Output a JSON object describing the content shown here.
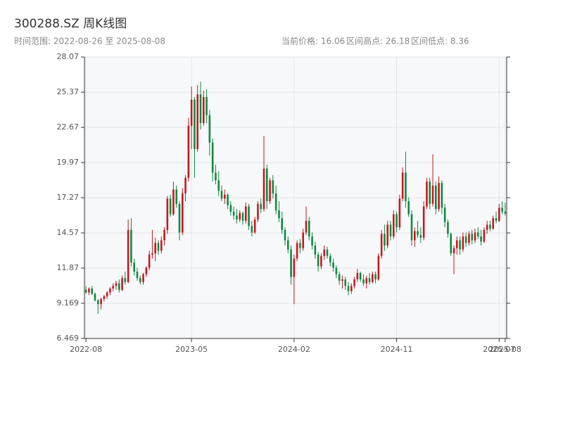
{
  "chart_data": {
    "type": "candlestick",
    "title": "300288.SZ 周K线图",
    "subtitle": "时间范围: 2022-08-26 至 2025-08-08",
    "stats": [
      "当前价格: 16.06",
      "区间高点: 26.18",
      "区间低点: 8.36"
    ],
    "up_color": "#c8161d",
    "down_color": "#0c8a3e",
    "grid": true,
    "ylim": [
      6.469,
      28.07
    ],
    "yticks": [
      6.469,
      9.169,
      11.87,
      14.57,
      17.27,
      19.97,
      22.67,
      25.37,
      28.07
    ],
    "xlim": [
      -0.5,
      139.5
    ],
    "xticks": [
      {
        "value": 0,
        "label": "2022-08"
      },
      {
        "value": 35,
        "label": "2023-05"
      },
      {
        "value": 69,
        "label": "2024-02"
      },
      {
        "value": 103,
        "label": "2024-11"
      },
      {
        "value": 137,
        "label": "2025-07"
      },
      {
        "value": 139,
        "label": "2025-08"
      }
    ],
    "ohlc": [
      [
        10.2,
        10.5,
        9.9,
        10.0
      ],
      [
        10.0,
        10.4,
        9.8,
        10.3
      ],
      [
        10.3,
        10.5,
        9.8,
        9.9
      ],
      [
        9.9,
        10.0,
        9.3,
        9.4
      ],
      [
        9.4,
        9.5,
        8.36,
        9.1
      ],
      [
        9.1,
        9.6,
        8.7,
        9.5
      ],
      [
        9.5,
        9.8,
        9.3,
        9.7
      ],
      [
        9.7,
        10.1,
        9.5,
        10.0
      ],
      [
        10.0,
        10.4,
        9.8,
        10.3
      ],
      [
        10.3,
        10.7,
        10.1,
        10.5
      ],
      [
        10.5,
        10.9,
        10.2,
        10.7
      ],
      [
        10.7,
        11.0,
        10.0,
        10.2
      ],
      [
        10.2,
        11.3,
        10.1,
        11.1
      ],
      [
        11.1,
        11.6,
        10.6,
        10.8
      ],
      [
        10.8,
        15.6,
        10.7,
        14.8
      ],
      [
        14.8,
        15.7,
        12.0,
        12.3
      ],
      [
        12.3,
        12.6,
        11.3,
        11.6
      ],
      [
        11.6,
        11.9,
        10.9,
        11.1
      ],
      [
        11.1,
        11.3,
        10.6,
        10.8
      ],
      [
        10.8,
        11.5,
        10.6,
        11.4
      ],
      [
        11.4,
        12.0,
        11.2,
        11.9
      ],
      [
        11.9,
        13.2,
        11.7,
        12.9
      ],
      [
        12.9,
        14.8,
        12.6,
        13.0
      ],
      [
        13.0,
        14.2,
        12.4,
        13.8
      ],
      [
        13.8,
        14.0,
        12.9,
        13.2
      ],
      [
        13.2,
        14.3,
        13.0,
        14.0
      ],
      [
        14.0,
        15.0,
        13.6,
        14.8
      ],
      [
        14.8,
        17.4,
        14.5,
        17.2
      ],
      [
        17.2,
        17.5,
        15.8,
        16.0
      ],
      [
        16.0,
        18.5,
        15.9,
        17.9
      ],
      [
        17.9,
        18.2,
        16.5,
        16.8
      ],
      [
        16.8,
        17.0,
        14.0,
        14.6
      ],
      [
        14.6,
        18.0,
        14.4,
        17.6
      ],
      [
        17.6,
        19.0,
        17.0,
        18.8
      ],
      [
        18.8,
        23.4,
        18.5,
        22.8
      ],
      [
        22.8,
        25.8,
        21.0,
        24.8
      ],
      [
        24.8,
        25.0,
        18.8,
        21.0
      ],
      [
        21.0,
        25.9,
        20.8,
        25.2
      ],
      [
        25.2,
        26.18,
        22.5,
        23.0
      ],
      [
        23.0,
        25.5,
        22.8,
        25.0
      ],
      [
        25.0,
        25.6,
        23.0,
        23.6
      ],
      [
        23.6,
        24.0,
        20.5,
        21.5
      ],
      [
        21.5,
        21.8,
        18.5,
        19.2
      ],
      [
        19.2,
        19.8,
        18.3,
        18.6
      ],
      [
        18.6,
        19.3,
        17.4,
        17.8
      ],
      [
        17.8,
        18.2,
        17.0,
        17.2
      ],
      [
        17.2,
        17.9,
        16.8,
        17.5
      ],
      [
        17.5,
        17.6,
        16.4,
        16.7
      ],
      [
        16.7,
        17.0,
        15.9,
        16.2
      ],
      [
        16.2,
        16.6,
        15.6,
        15.9
      ],
      [
        15.9,
        16.4,
        15.3,
        15.6
      ],
      [
        15.6,
        16.3,
        15.4,
        16.1
      ],
      [
        16.1,
        16.2,
        15.2,
        15.5
      ],
      [
        15.5,
        16.9,
        15.3,
        16.6
      ],
      [
        16.6,
        16.8,
        14.8,
        15.1
      ],
      [
        15.1,
        15.5,
        14.3,
        14.6
      ],
      [
        14.6,
        15.8,
        14.5,
        15.6
      ],
      [
        15.6,
        17.0,
        15.4,
        16.8
      ],
      [
        16.8,
        17.2,
        16.1,
        16.4
      ],
      [
        16.4,
        22.0,
        16.2,
        19.5
      ],
      [
        19.5,
        19.8,
        16.4,
        17.0
      ],
      [
        17.0,
        18.8,
        16.8,
        18.6
      ],
      [
        18.6,
        19.0,
        17.2,
        17.6
      ],
      [
        17.6,
        18.2,
        16.0,
        16.3
      ],
      [
        16.3,
        17.0,
        15.4,
        15.7
      ],
      [
        15.7,
        16.2,
        14.5,
        14.8
      ],
      [
        14.8,
        15.0,
        13.6,
        14.0
      ],
      [
        14.0,
        14.3,
        13.0,
        13.3
      ],
      [
        13.3,
        13.6,
        10.6,
        11.2
      ],
      [
        11.2,
        12.9,
        9.1,
        12.6
      ],
      [
        12.6,
        14.0,
        12.4,
        13.8
      ],
      [
        13.8,
        14.1,
        13.0,
        13.4
      ],
      [
        13.4,
        14.9,
        13.2,
        14.6
      ],
      [
        14.6,
        16.6,
        14.4,
        15.5
      ],
      [
        15.5,
        15.8,
        14.0,
        14.3
      ],
      [
        14.3,
        14.6,
        13.3,
        13.6
      ],
      [
        13.6,
        13.9,
        12.6,
        12.9
      ],
      [
        12.9,
        13.1,
        11.6,
        12.0
      ],
      [
        12.0,
        13.0,
        11.8,
        12.8
      ],
      [
        12.8,
        13.6,
        12.5,
        13.3
      ],
      [
        13.3,
        13.5,
        12.6,
        12.8
      ],
      [
        12.8,
        13.0,
        12.0,
        12.3
      ],
      [
        12.3,
        12.6,
        11.6,
        11.9
      ],
      [
        11.9,
        12.1,
        11.1,
        11.4
      ],
      [
        11.4,
        11.6,
        10.6,
        10.9
      ],
      [
        10.9,
        11.3,
        10.3,
        11.0
      ],
      [
        11.0,
        11.2,
        10.2,
        10.5
      ],
      [
        10.5,
        10.8,
        9.8,
        10.1
      ],
      [
        10.1,
        10.7,
        9.9,
        10.5
      ],
      [
        10.5,
        11.2,
        10.3,
        11.0
      ],
      [
        11.0,
        11.8,
        10.8,
        11.5
      ],
      [
        11.5,
        11.6,
        10.8,
        11.0
      ],
      [
        11.0,
        11.4,
        10.5,
        10.7
      ],
      [
        10.7,
        11.3,
        10.3,
        11.1
      ],
      [
        11.1,
        11.5,
        10.6,
        10.8
      ],
      [
        10.8,
        11.6,
        10.7,
        11.4
      ],
      [
        11.4,
        11.6,
        10.7,
        11.0
      ],
      [
        11.0,
        13.0,
        10.9,
        12.8
      ],
      [
        12.8,
        14.8,
        12.6,
        14.5
      ],
      [
        14.5,
        15.2,
        13.2,
        13.6
      ],
      [
        13.6,
        15.5,
        13.4,
        15.2
      ],
      [
        15.2,
        15.5,
        14.0,
        14.3
      ],
      [
        14.3,
        16.3,
        14.1,
        16.0
      ],
      [
        16.0,
        16.2,
        14.6,
        15.0
      ],
      [
        15.0,
        17.5,
        14.8,
        17.2
      ],
      [
        17.2,
        19.6,
        17.0,
        19.2
      ],
      [
        19.2,
        20.8,
        16.5,
        17.0
      ],
      [
        17.0,
        17.3,
        15.8,
        16.0
      ],
      [
        16.0,
        16.3,
        13.6,
        14.0
      ],
      [
        14.0,
        15.0,
        13.5,
        14.7
      ],
      [
        14.7,
        15.5,
        14.2,
        14.4
      ],
      [
        14.4,
        15.0,
        13.8,
        14.2
      ],
      [
        14.2,
        17.0,
        14.0,
        16.6
      ],
      [
        16.6,
        18.8,
        16.4,
        18.5
      ],
      [
        18.5,
        18.8,
        16.4,
        16.8
      ],
      [
        16.8,
        20.6,
        16.6,
        18.2
      ],
      [
        18.2,
        18.5,
        16.0,
        16.4
      ],
      [
        16.4,
        18.9,
        16.2,
        18.4
      ],
      [
        18.4,
        18.6,
        16.0,
        16.5
      ],
      [
        16.5,
        16.8,
        15.0,
        15.4
      ],
      [
        15.4,
        15.6,
        14.2,
        14.5
      ],
      [
        14.5,
        14.6,
        12.8,
        13.0
      ],
      [
        13.0,
        13.6,
        11.4,
        13.4
      ],
      [
        13.4,
        14.3,
        12.9,
        14.0
      ],
      [
        14.0,
        14.3,
        12.9,
        13.3
      ],
      [
        13.3,
        14.6,
        13.1,
        14.3
      ],
      [
        14.3,
        14.6,
        13.5,
        13.8
      ],
      [
        13.8,
        14.7,
        13.6,
        14.5
      ],
      [
        14.5,
        14.8,
        13.7,
        14.0
      ],
      [
        14.0,
        14.9,
        13.8,
        14.6
      ],
      [
        14.6,
        15.0,
        14.1,
        14.3
      ],
      [
        14.3,
        14.8,
        13.6,
        13.9
      ],
      [
        13.9,
        15.0,
        13.8,
        14.8
      ],
      [
        14.8,
        15.5,
        14.5,
        15.2
      ],
      [
        15.2,
        15.5,
        14.7,
        14.9
      ],
      [
        14.9,
        15.9,
        14.8,
        15.7
      ],
      [
        15.7,
        16.2,
        15.3,
        15.5
      ],
      [
        15.5,
        16.8,
        15.4,
        16.5
      ],
      [
        16.5,
        17.0,
        16.0,
        16.2
      ],
      [
        16.2,
        16.9,
        15.9,
        16.06
      ]
    ]
  }
}
